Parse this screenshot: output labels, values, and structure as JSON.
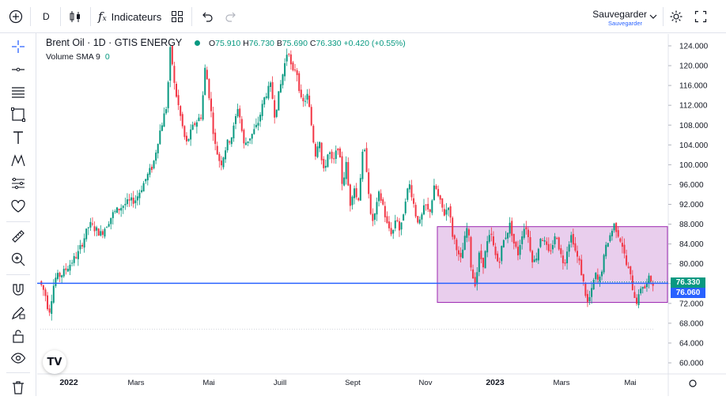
{
  "toolbar": {
    "interval": "D",
    "indicators_label": "Indicateurs",
    "save_label": "Sauvegarder",
    "save_sublabel": "Sauvegarder"
  },
  "legend": {
    "symbol": "Brent Oil · 1D · GTIS ENERGY",
    "open_label": "O",
    "open": "75.910",
    "high_label": "H",
    "high": "76.730",
    "low_label": "B",
    "low": "75.690",
    "close_label": "C",
    "close": "76.330",
    "change": "+0.420 (+0.55%)",
    "volume_label": "Volume SMA 9",
    "volume_value": "0"
  },
  "price_labels": {
    "last": "76.330",
    "line": "76.060"
  },
  "colors": {
    "up": "#089981",
    "down": "#f23645",
    "hline": "#2962ff",
    "range_fill": "#e1bee7",
    "range_border": "#9c27b0"
  },
  "chart_data": {
    "type": "candlestick",
    "instrument": "Brent Oil",
    "interval": "1D",
    "ylim": [
      58,
      126
    ],
    "y_ticks": [
      "124.000",
      "120.000",
      "116.000",
      "112.000",
      "108.000",
      "104.000",
      "100.000",
      "96.000",
      "92.000",
      "88.000",
      "84.000",
      "80.000",
      "76.000",
      "72.000",
      "68.000",
      "64.000",
      "60.000"
    ],
    "x_ticks": [
      "2022",
      "Mars",
      "Mai",
      "Juill",
      "Sept",
      "Nov",
      "2023",
      "Mars",
      "Mai"
    ],
    "horizontal_line_price": 76.06,
    "rectangle": {
      "price_top": 87.5,
      "price_bottom": 72.2
    },
    "path_points": [
      [
        0,
        76.5
      ],
      [
        3,
        74
      ],
      [
        5,
        70
      ],
      [
        8,
        77
      ],
      [
        12,
        78
      ],
      [
        16,
        80
      ],
      [
        20,
        82
      ],
      [
        26,
        88
      ],
      [
        32,
        86
      ],
      [
        38,
        90
      ],
      [
        44,
        92
      ],
      [
        50,
        93
      ],
      [
        55,
        97
      ],
      [
        59,
        100
      ],
      [
        62,
        106
      ],
      [
        66,
        112
      ],
      [
        68,
        124
      ],
      [
        70,
        116
      ],
      [
        73,
        110
      ],
      [
        76,
        104
      ],
      [
        80,
        108
      ],
      [
        84,
        110
      ],
      [
        86,
        120
      ],
      [
        88,
        114
      ],
      [
        91,
        104
      ],
      [
        94,
        100
      ],
      [
        97,
        104
      ],
      [
        100,
        106
      ],
      [
        103,
        112
      ],
      [
        106,
        104
      ],
      [
        110,
        106
      ],
      [
        113,
        108
      ],
      [
        117,
        114
      ],
      [
        120,
        116
      ],
      [
        122,
        110
      ],
      [
        124,
        114
      ],
      [
        127,
        120
      ],
      [
        129,
        124
      ],
      [
        131,
        118
      ],
      [
        133,
        120
      ],
      [
        136,
        112
      ],
      [
        139,
        114
      ],
      [
        141,
        108
      ],
      [
        143,
        102
      ],
      [
        145,
        106
      ],
      [
        147,
        98
      ],
      [
        150,
        103
      ],
      [
        152,
        100
      ],
      [
        155,
        104
      ],
      [
        157,
        96
      ],
      [
        159,
        100
      ],
      [
        161,
        92
      ],
      [
        163,
        96
      ],
      [
        165,
        92
      ],
      [
        168,
        104
      ],
      [
        170,
        98
      ],
      [
        172,
        88
      ],
      [
        174,
        90
      ],
      [
        176,
        94
      ],
      [
        178,
        92
      ],
      [
        180,
        88
      ],
      [
        183,
        86
      ],
      [
        185,
        90
      ],
      [
        187,
        86
      ],
      [
        190,
        94
      ],
      [
        192,
        96
      ],
      [
        195,
        90
      ],
      [
        197,
        88
      ],
      [
        200,
        92
      ],
      [
        202,
        90
      ],
      [
        205,
        96
      ],
      [
        207,
        93
      ],
      [
        210,
        90
      ],
      [
        212,
        92
      ],
      [
        214,
        86
      ],
      [
        216,
        84
      ],
      [
        218,
        80
      ],
      [
        220,
        84
      ],
      [
        222,
        88
      ],
      [
        224,
        78
      ],
      [
        226,
        76
      ],
      [
        228,
        82
      ],
      [
        230,
        80
      ],
      [
        232,
        84
      ],
      [
        234,
        86
      ],
      [
        236,
        82
      ],
      [
        238,
        80
      ],
      [
        240,
        84
      ],
      [
        242,
        86
      ],
      [
        244,
        88
      ],
      [
        246,
        84
      ],
      [
        248,
        82
      ],
      [
        250,
        86
      ],
      [
        252,
        88
      ],
      [
        254,
        84
      ],
      [
        256,
        80
      ],
      [
        258,
        82
      ],
      [
        260,
        86
      ],
      [
        262,
        84
      ],
      [
        264,
        82
      ],
      [
        266,
        84
      ],
      [
        268,
        86
      ],
      [
        270,
        82
      ],
      [
        272,
        80
      ],
      [
        274,
        84
      ],
      [
        276,
        86
      ],
      [
        278,
        82
      ],
      [
        280,
        80
      ],
      [
        282,
        76
      ],
      [
        284,
        72
      ],
      [
        286,
        74
      ],
      [
        288,
        78
      ],
      [
        290,
        76
      ],
      [
        292,
        80
      ],
      [
        294,
        84
      ],
      [
        296,
        86
      ],
      [
        298,
        88
      ],
      [
        300,
        86
      ],
      [
        302,
        84
      ],
      [
        304,
        80
      ],
      [
        306,
        78
      ],
      [
        308,
        74
      ],
      [
        310,
        72
      ],
      [
        312,
        76
      ],
      [
        314,
        75
      ],
      [
        316,
        77
      ],
      [
        318,
        76.3
      ]
    ],
    "last_close": 76.33
  }
}
